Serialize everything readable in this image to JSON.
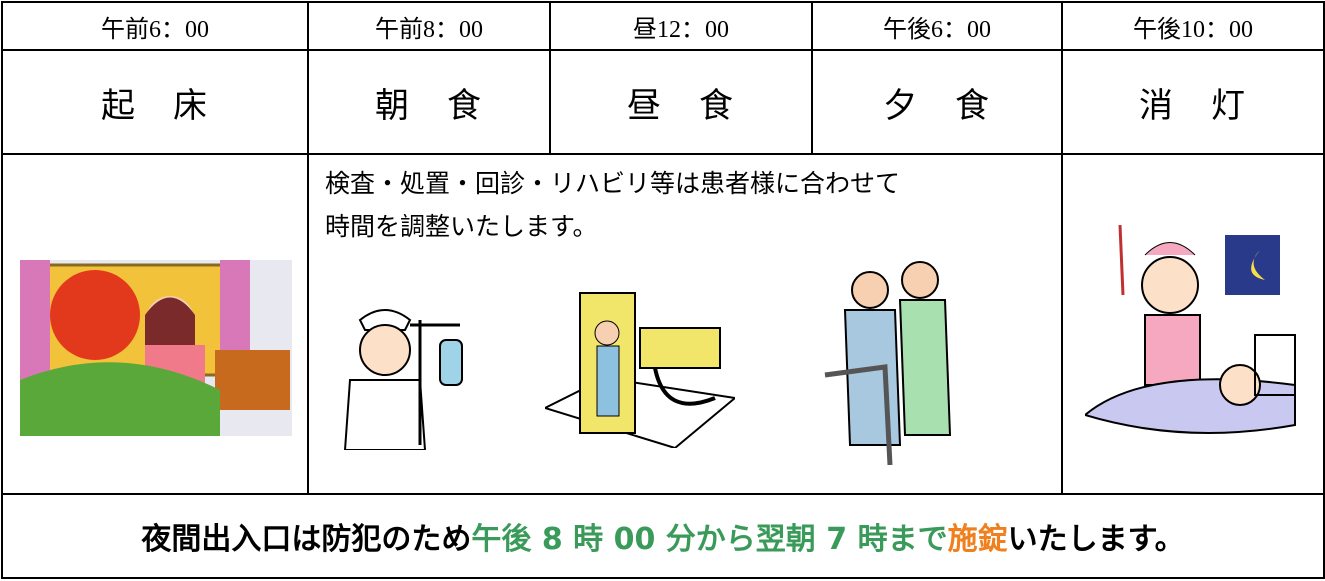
{
  "schedule": {
    "times": [
      "午前6：00",
      "午前8：00",
      "昼12：00",
      "午後6：00",
      "午後10：00"
    ],
    "activities": [
      "起　床",
      "朝　食",
      "昼　食",
      "夕　食",
      "消　灯"
    ]
  },
  "note": [
    "検査・処置・回診・リハビリ等は患者様に合わせて",
    "時間を調整いたします。"
  ],
  "footer": {
    "segments": [
      "夜間出入口は防犯のため",
      "午後 8 時 00 分から翌朝 7 時まで",
      "施錠",
      "いたします。"
    ]
  }
}
